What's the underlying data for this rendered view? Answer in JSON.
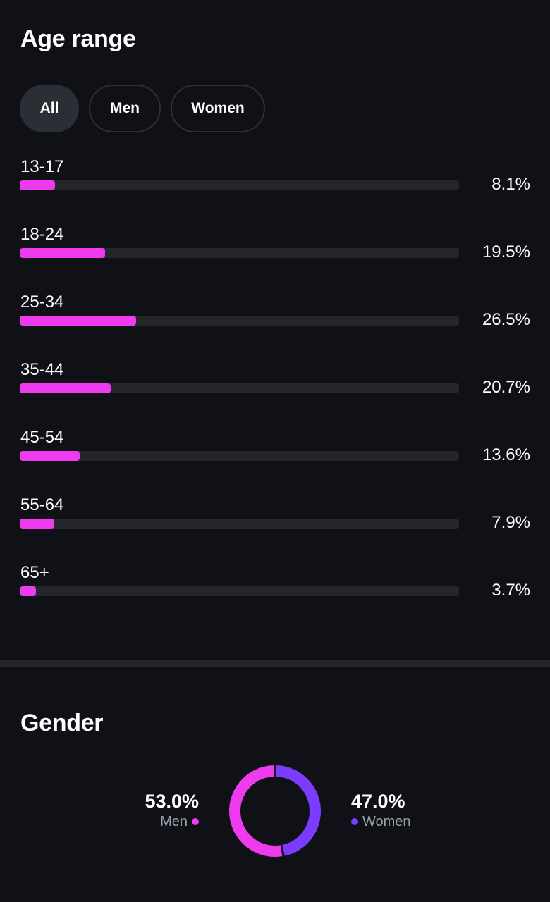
{
  "age_range": {
    "title": "Age range",
    "filters": [
      {
        "label": "All",
        "active": true
      },
      {
        "label": "Men",
        "active": false
      },
      {
        "label": "Women",
        "active": false
      }
    ],
    "rows": [
      {
        "label": "13-17",
        "value_text": "8.1%",
        "fill_fraction": 0.081
      },
      {
        "label": "18-24",
        "value_text": "19.5%",
        "fill_fraction": 0.195
      },
      {
        "label": "25-34",
        "value_text": "26.5%",
        "fill_fraction": 0.265
      },
      {
        "label": "35-44",
        "value_text": "20.7%",
        "fill_fraction": 0.207
      },
      {
        "label": "45-54",
        "value_text": "13.6%",
        "fill_fraction": 0.136
      },
      {
        "label": "55-64",
        "value_text": "7.9%",
        "fill_fraction": 0.079
      },
      {
        "label": "65+",
        "value_text": "3.7%",
        "fill_fraction": 0.037
      }
    ]
  },
  "gender": {
    "title": "Gender",
    "men": {
      "percent_text": "53.0%",
      "label": "Men",
      "fraction": 0.53
    },
    "women": {
      "percent_text": "47.0%",
      "label": "Women",
      "fraction": 0.47
    }
  },
  "colors": {
    "background": "#0f1116",
    "bar_fill": "#ee3bee",
    "bar_track": "#24262c",
    "men": "#ee3bee",
    "women": "#7b3cff",
    "muted_text": "#9aa0a9"
  }
}
